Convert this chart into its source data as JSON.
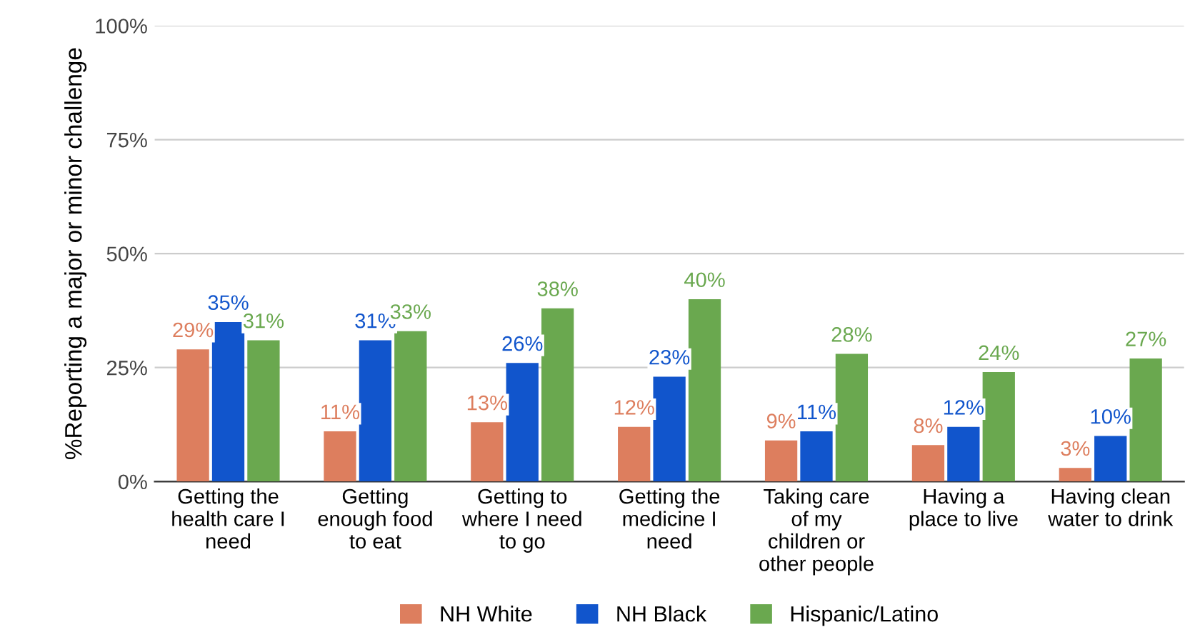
{
  "chart_data": {
    "type": "bar",
    "ylabel": "%Reporting a major or minor challenge",
    "categories": [
      "Getting the\nhealth care I\nneed",
      "Getting\nenough food\nto eat",
      "Getting to\nwhere I need\nto go",
      "Getting the\nmedicine I\nneed",
      "Taking care\nof my\nchildren or\nother people",
      "Having a\nplace to live",
      "Having clean\nwater to drink"
    ],
    "series": [
      {
        "name": "NH White",
        "color": "#dd7e5e",
        "values": [
          29,
          11,
          13,
          12,
          9,
          8,
          3
        ],
        "value_labels": [
          "29%",
          "11%",
          "13%",
          "12%",
          "9%",
          "8%",
          "3%"
        ]
      },
      {
        "name": "NH Black",
        "color": "#1155cc",
        "values": [
          35,
          31,
          26,
          23,
          11,
          12,
          10
        ],
        "value_labels": [
          "35%",
          "31%",
          "26%",
          "23%",
          "11%",
          "12%",
          "10%"
        ]
      },
      {
        "name": "Hispanic/Latino",
        "color": "#6aa84f",
        "values": [
          31,
          33,
          38,
          40,
          28,
          24,
          27
        ],
        "value_labels": [
          "31%",
          "33%",
          "38%",
          "40%",
          "28%",
          "24%",
          "27%"
        ]
      }
    ],
    "ylim": [
      0,
      100
    ],
    "yticks": [
      {
        "value": 0,
        "label": "0%"
      },
      {
        "value": 25,
        "label": "25%"
      },
      {
        "value": 50,
        "label": "50%"
      },
      {
        "value": 75,
        "label": "75%"
      },
      {
        "value": 100,
        "label": "100%"
      }
    ],
    "grid": "y",
    "legend": "bottom"
  }
}
